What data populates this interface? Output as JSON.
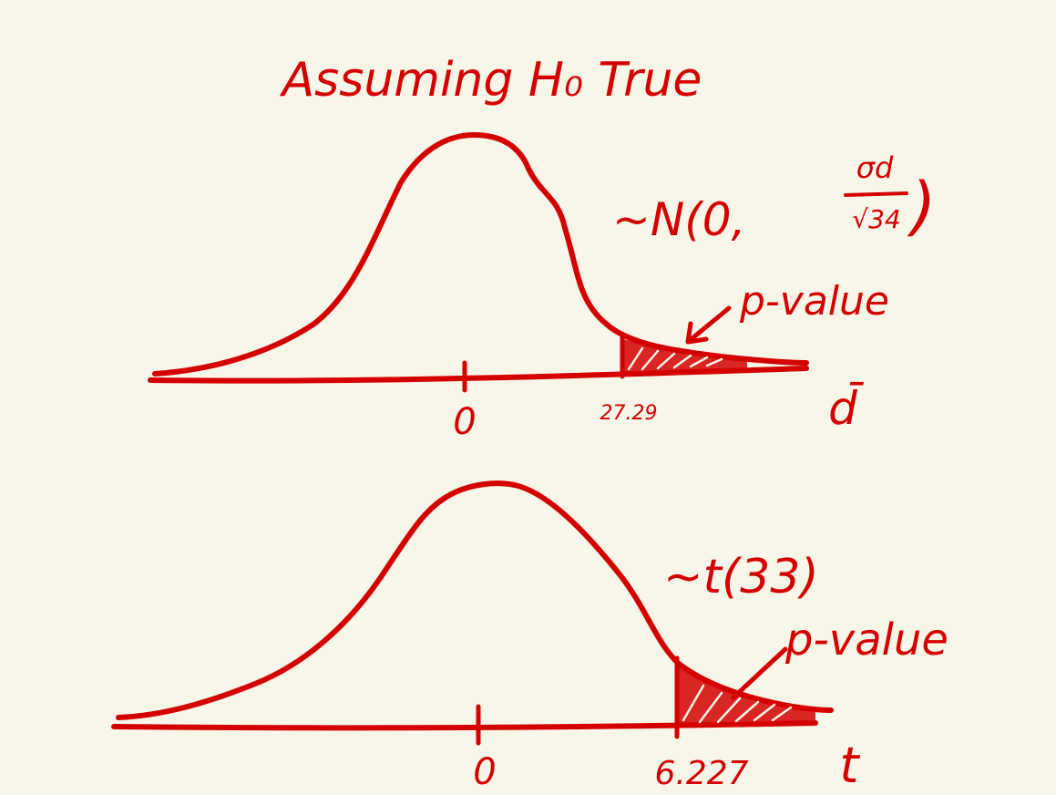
{
  "title": "Assuming H₀ True",
  "ink_color": "#d40000",
  "background_color": "#f8f5e9",
  "top_plot": {
    "distribution_prefix": "~N(0,",
    "sigma_label": "σd",
    "sqrt_label": "√34",
    "close_paren": ")",
    "pvalue_label": "p-value",
    "center_tick_label": "0",
    "observed_label": "27.29",
    "axis_variable": "d̄"
  },
  "bottom_plot": {
    "distribution_label": "~t(33)",
    "pvalue_label": "p-value",
    "center_tick_label": "0",
    "observed_label": "6.227",
    "axis_variable": "t"
  }
}
